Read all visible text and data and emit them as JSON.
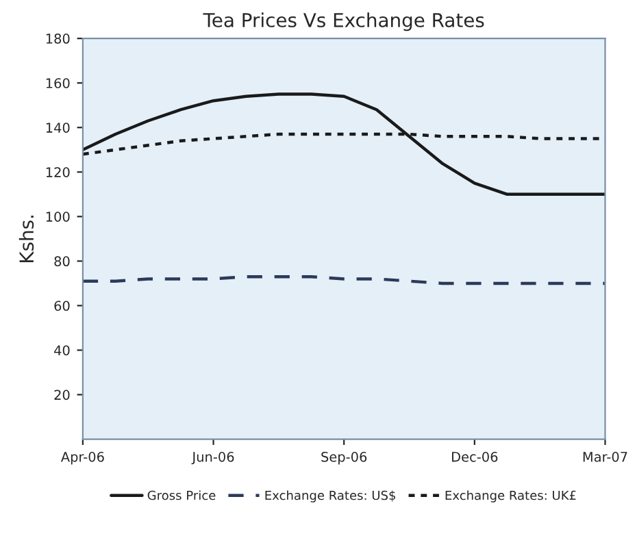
{
  "chart_data": {
    "type": "line",
    "title": "Tea Prices Vs Exchange Rates",
    "ylabel": "Kshs.",
    "categories": [
      "Apr-06",
      null,
      null,
      null,
      "Jun-06",
      null,
      null,
      null,
      "Sep-06",
      null,
      null,
      null,
      "Dec-06",
      null,
      null,
      null,
      "Mar-07"
    ],
    "ylim": [
      0,
      180
    ],
    "yticks": [
      20,
      40,
      60,
      80,
      100,
      120,
      140,
      160,
      180
    ],
    "grid": false,
    "legend": "bottom",
    "marker": "none",
    "series": [
      {
        "name": "Gross Price",
        "color": "#1a1a1a",
        "line_style": "solid",
        "values": [
          130,
          137,
          143,
          148,
          152,
          154,
          155,
          155,
          154,
          148,
          136,
          124,
          115,
          110,
          110,
          110,
          110
        ]
      },
      {
        "name": "Exchange Rates: US$",
        "color": "#2b3a5a",
        "line_style": "dashed",
        "values": [
          71,
          71,
          72,
          72,
          72,
          73,
          73,
          73,
          72,
          72,
          71,
          70,
          70,
          70,
          70,
          70,
          70
        ]
      },
      {
        "name": "Exchange Rates: UK£",
        "color": "#1a1a1a",
        "line_style": "dotted",
        "values": [
          128,
          130,
          132,
          134,
          135,
          136,
          137,
          137,
          137,
          137,
          137,
          136,
          136,
          136,
          135,
          135,
          135
        ]
      }
    ]
  }
}
